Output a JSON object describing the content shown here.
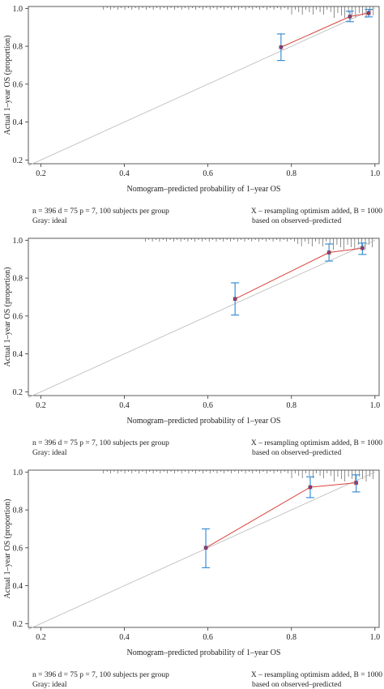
{
  "chart_data": [
    {
      "type": "scatter",
      "xlabel": "Nomogram–predicted probability of 1–year OS",
      "ylabel": "Actual 1–year OS (proportion)",
      "xlim": [
        0.17,
        1.01
      ],
      "ylim": [
        0.18,
        1.01
      ],
      "xticks": [
        0.2,
        0.4,
        0.6,
        0.8,
        1.0
      ],
      "xtick_labels": [
        "0.2",
        "0.4",
        "0.6",
        "0.8",
        "1.0"
      ],
      "yticks": [
        0.2,
        0.4,
        0.6,
        0.8,
        1.0
      ],
      "ytick_labels": [
        "0.2",
        "0.4",
        "0.6",
        "0.8",
        "1.0"
      ],
      "ideal_line": [
        [
          0.17,
          0.17
        ],
        [
          1.0,
          1.0
        ]
      ],
      "points": [
        {
          "x": 0.775,
          "y": 0.795,
          "lo": 0.725,
          "hi": 0.865
        },
        {
          "x": 0.94,
          "y": 0.957,
          "lo": 0.93,
          "hi": 0.985
        },
        {
          "x": 0.985,
          "y": 0.975,
          "lo": 0.955,
          "hi": 0.995
        }
      ],
      "rug_start": 0.35,
      "notes": {
        "left1": "n = 396 d = 75 p = 7, 100 subjects per group",
        "left2": "Gray: ideal",
        "right1": "X – resampling optimism added, B = 1000",
        "right2": "based on observed–predicted"
      }
    },
    {
      "type": "scatter",
      "xlabel": "Nomogram–predicted probability of 1–year OS",
      "ylabel": "Actual 1–year OS (proportion)",
      "xlim": [
        0.17,
        1.01
      ],
      "ylim": [
        0.18,
        1.01
      ],
      "xticks": [
        0.2,
        0.4,
        0.6,
        0.8,
        1.0
      ],
      "xtick_labels": [
        "0.2",
        "0.4",
        "0.6",
        "0.8",
        "1.0"
      ],
      "yticks": [
        0.2,
        0.4,
        0.6,
        0.8,
        1.0
      ],
      "ytick_labels": [
        "0.2",
        "0.4",
        "0.6",
        "0.8",
        "1.0"
      ],
      "ideal_line": [
        [
          0.17,
          0.17
        ],
        [
          1.0,
          1.0
        ]
      ],
      "points": [
        {
          "x": 0.665,
          "y": 0.69,
          "lo": 0.605,
          "hi": 0.775
        },
        {
          "x": 0.89,
          "y": 0.935,
          "lo": 0.89,
          "hi": 0.98
        },
        {
          "x": 0.97,
          "y": 0.958,
          "lo": 0.925,
          "hi": 0.985
        }
      ],
      "rug_start": 0.45,
      "notes": {
        "left1": "n = 396 d = 75 p = 7, 100 subjects per group",
        "left2": "Gray: ideal",
        "right1": "X – resampling optimism added, B = 1000",
        "right2": "based on observed–predicted"
      }
    },
    {
      "type": "scatter",
      "xlabel": "Nomogram–predicted probability of 1–year OS",
      "ylabel": "Actual 1–year OS (proportion)",
      "xlim": [
        0.17,
        1.01
      ],
      "ylim": [
        0.18,
        1.01
      ],
      "xticks": [
        0.2,
        0.4,
        0.6,
        0.8,
        1.0
      ],
      "xtick_labels": [
        "0.2",
        "0.4",
        "0.6",
        "0.8",
        "1.0"
      ],
      "yticks": [
        0.2,
        0.4,
        0.6,
        0.8,
        1.0
      ],
      "ytick_labels": [
        "0.2",
        "0.4",
        "0.6",
        "0.8",
        "1.0"
      ],
      "ideal_line": [
        [
          0.17,
          0.17
        ],
        [
          1.0,
          1.0
        ]
      ],
      "points": [
        {
          "x": 0.595,
          "y": 0.6,
          "lo": 0.495,
          "hi": 0.7
        },
        {
          "x": 0.845,
          "y": 0.92,
          "lo": 0.865,
          "hi": 0.975
        },
        {
          "x": 0.955,
          "y": 0.943,
          "lo": 0.895,
          "hi": 0.985
        }
      ],
      "rug_start": 0.35,
      "notes": {
        "left1": "n = 396 d = 75 p = 7, 100 subjects per group",
        "left2": "Gray: ideal",
        "right1": "X – resampling optimism added, B = 1000",
        "right2": "based on observed–predicted"
      }
    }
  ],
  "colors": {
    "ideal": "#b8b8b8",
    "apparent": "#d9423c",
    "errorbar": "#3a8fd6",
    "point": "#2b3a8f",
    "axis": "#333333",
    "rug": "#444444"
  }
}
